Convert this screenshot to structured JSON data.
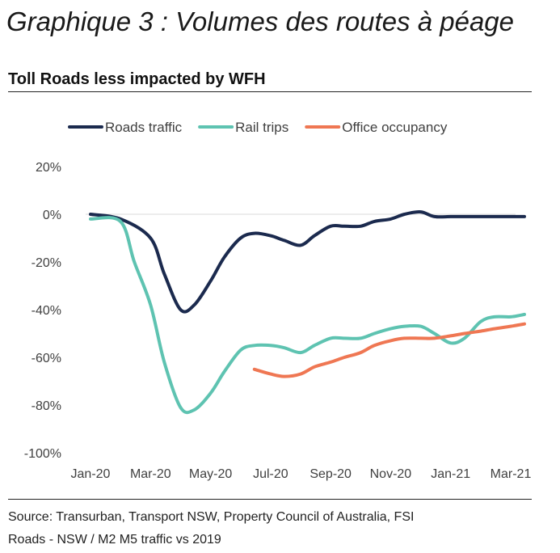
{
  "heading": "Graphique 3 : Volumes des routes à péage",
  "chart_data": {
    "type": "line",
    "title": "Toll Roads less impacted by WFH",
    "xlabel": "",
    "ylabel": "",
    "x_ticks": [
      "Jan-20",
      "Mar-20",
      "May-20",
      "Jul-20",
      "Sep-20",
      "Nov-20",
      "Jan-21",
      "Mar-21"
    ],
    "y_ticks": [
      "20%",
      "0%",
      "-20%",
      "-40%",
      "-60%",
      "-80%",
      "-100%"
    ],
    "ylim": [
      -100,
      20
    ],
    "grid": false,
    "legend_position": "top",
    "series": [
      {
        "name": "Roads traffic",
        "color": "#1b2a4e",
        "x": [
          "2020-01-01",
          "2020-02-01",
          "2020-03-01",
          "2020-03-15",
          "2020-04-01",
          "2020-04-15",
          "2020-05-01",
          "2020-05-15",
          "2020-06-01",
          "2020-06-15",
          "2020-07-01",
          "2020-07-15",
          "2020-08-01",
          "2020-08-15",
          "2020-09-01",
          "2020-09-15",
          "2020-10-01",
          "2020-10-15",
          "2020-11-01",
          "2020-11-15",
          "2020-12-01",
          "2020-12-15",
          "2021-01-01",
          "2021-01-15",
          "2021-02-01",
          "2021-02-15",
          "2021-03-01",
          "2021-03-15"
        ],
        "y": [
          0,
          -2,
          -10,
          -25,
          -40,
          -38,
          -28,
          -18,
          -10,
          -8,
          -9,
          -11,
          -13,
          -9,
          -5,
          -5,
          -5,
          -3,
          -2,
          0,
          1,
          -1,
          -1,
          -1,
          -1,
          -1,
          -1,
          -1
        ]
      },
      {
        "name": "Rail trips",
        "color": "#5ec3b1",
        "x": [
          "2020-01-01",
          "2020-02-01",
          "2020-02-15",
          "2020-03-01",
          "2020-03-15",
          "2020-04-01",
          "2020-04-15",
          "2020-05-01",
          "2020-05-15",
          "2020-06-01",
          "2020-06-15",
          "2020-07-01",
          "2020-07-15",
          "2020-08-01",
          "2020-08-15",
          "2020-09-01",
          "2020-09-15",
          "2020-10-01",
          "2020-10-15",
          "2020-11-01",
          "2020-11-15",
          "2020-12-01",
          "2020-12-15",
          "2021-01-01",
          "2021-01-15",
          "2021-02-01",
          "2021-02-15",
          "2021-03-01",
          "2021-03-15"
        ],
        "y": [
          -2,
          -3,
          -20,
          -38,
          -62,
          -81,
          -82,
          -75,
          -66,
          -57,
          -55,
          -55,
          -56,
          -58,
          -55,
          -52,
          -52,
          -52,
          -50,
          -48,
          -47,
          -47,
          -50,
          -54,
          -52,
          -45,
          -43,
          -43,
          -42
        ]
      },
      {
        "name": "Office occupancy",
        "color": "#ef7753",
        "x": [
          "2020-06-15",
          "2020-07-01",
          "2020-07-15",
          "2020-08-01",
          "2020-08-15",
          "2020-09-01",
          "2020-09-15",
          "2020-10-01",
          "2020-10-15",
          "2020-11-01",
          "2020-11-15",
          "2020-12-01",
          "2020-12-15",
          "2021-01-01",
          "2021-01-15",
          "2021-02-01",
          "2021-02-15",
          "2021-03-01",
          "2021-03-15"
        ],
        "y": [
          -65,
          -67,
          -68,
          -67,
          -64,
          -62,
          -60,
          -58,
          -55,
          -53,
          -52,
          -52,
          -52,
          -51,
          -50,
          -49,
          -48,
          -47,
          -46
        ]
      }
    ]
  },
  "source": {
    "line1": "Source: Transurban, Transport NSW, Property Council of Australia, FSI",
    "line2": "Roads - NSW / M2 M5 traffic vs 2019"
  }
}
